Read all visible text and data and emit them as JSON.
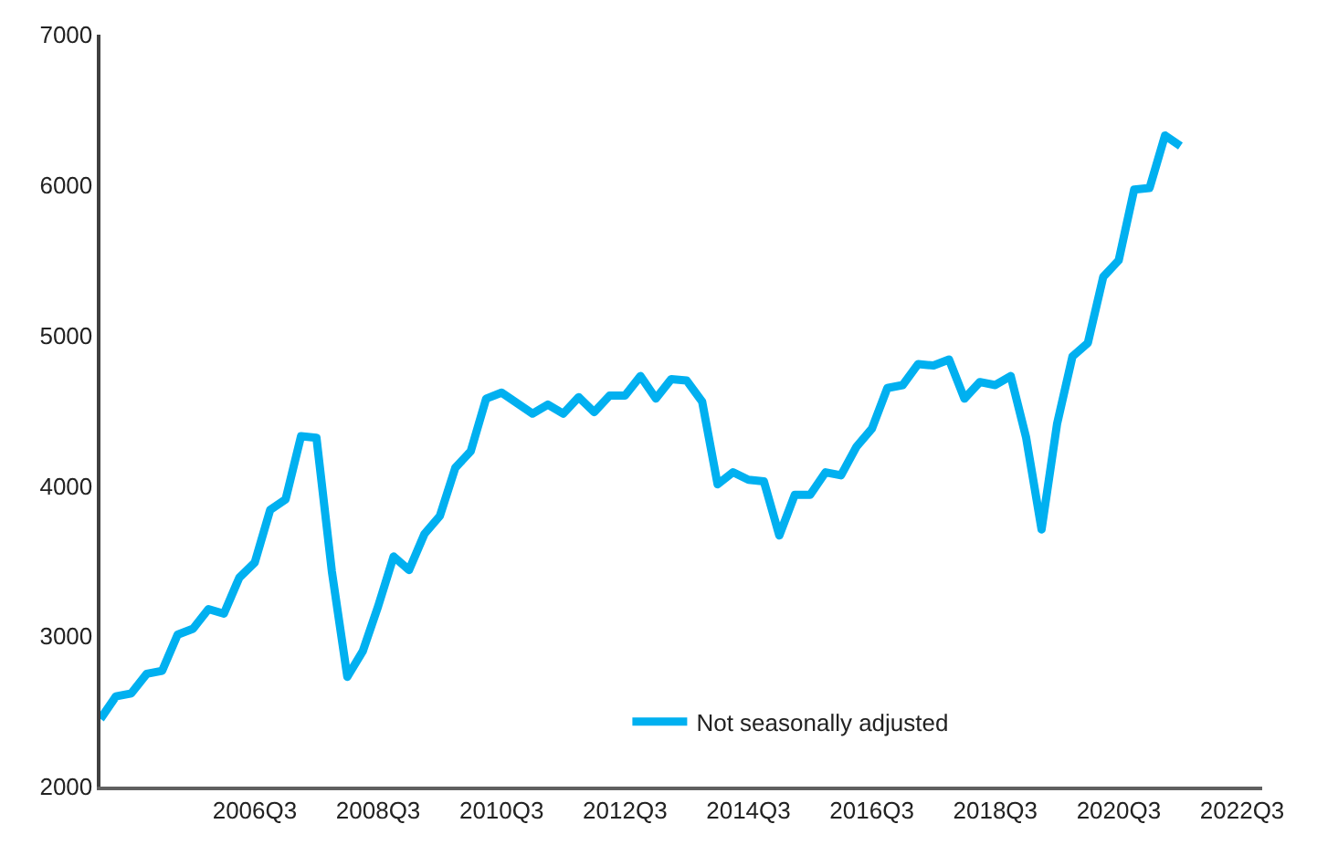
{
  "chart_data": {
    "type": "line",
    "categories": [
      null,
      null,
      null,
      null,
      null,
      null,
      null,
      null,
      null,
      null,
      "2006Q3",
      null,
      null,
      null,
      null,
      null,
      null,
      null,
      "2008Q3",
      null,
      null,
      null,
      null,
      null,
      null,
      null,
      "2010Q3",
      null,
      null,
      null,
      null,
      null,
      null,
      null,
      "2012Q3",
      null,
      null,
      null,
      null,
      null,
      null,
      null,
      "2014Q3",
      null,
      null,
      null,
      null,
      null,
      null,
      null,
      "2016Q3",
      null,
      null,
      null,
      null,
      null,
      null,
      null,
      "2018Q3",
      null,
      null,
      null,
      null,
      null,
      null,
      null,
      "2020Q3",
      null,
      null,
      null,
      null,
      null,
      null,
      null,
      "2022Q3"
    ],
    "series": [
      {
        "name": "Not seasonally adjusted",
        "color": "#00b0f0",
        "values": [
          2450,
          2600,
          2620,
          2750,
          2770,
          3010,
          3050,
          3180,
          3150,
          3390,
          3490,
          3840,
          3910,
          4330,
          4320,
          3430,
          2730,
          2900,
          3200,
          3530,
          3440,
          3680,
          3800,
          4120,
          4230,
          4580,
          4620,
          4550,
          4480,
          4540,
          4480,
          4590,
          4490,
          4600,
          4600,
          4730,
          4580,
          4710,
          4700,
          4560,
          4010,
          4090,
          4040,
          4030,
          3670,
          3940,
          3940,
          4090,
          4070,
          4260,
          4380,
          4650,
          4670,
          4810,
          4800,
          4840,
          4580,
          4690,
          4670,
          4730,
          4320,
          3710,
          4410,
          4860,
          4950,
          5390,
          5500,
          5970,
          5980,
          6330,
          6260,
          null,
          null,
          null,
          null
        ]
      }
    ],
    "ylim": [
      2000,
      7000
    ],
    "yticks": [
      2000,
      3000,
      4000,
      5000,
      6000,
      7000
    ],
    "legend": "bottom right",
    "marker": "none",
    "line_style": "solid"
  }
}
